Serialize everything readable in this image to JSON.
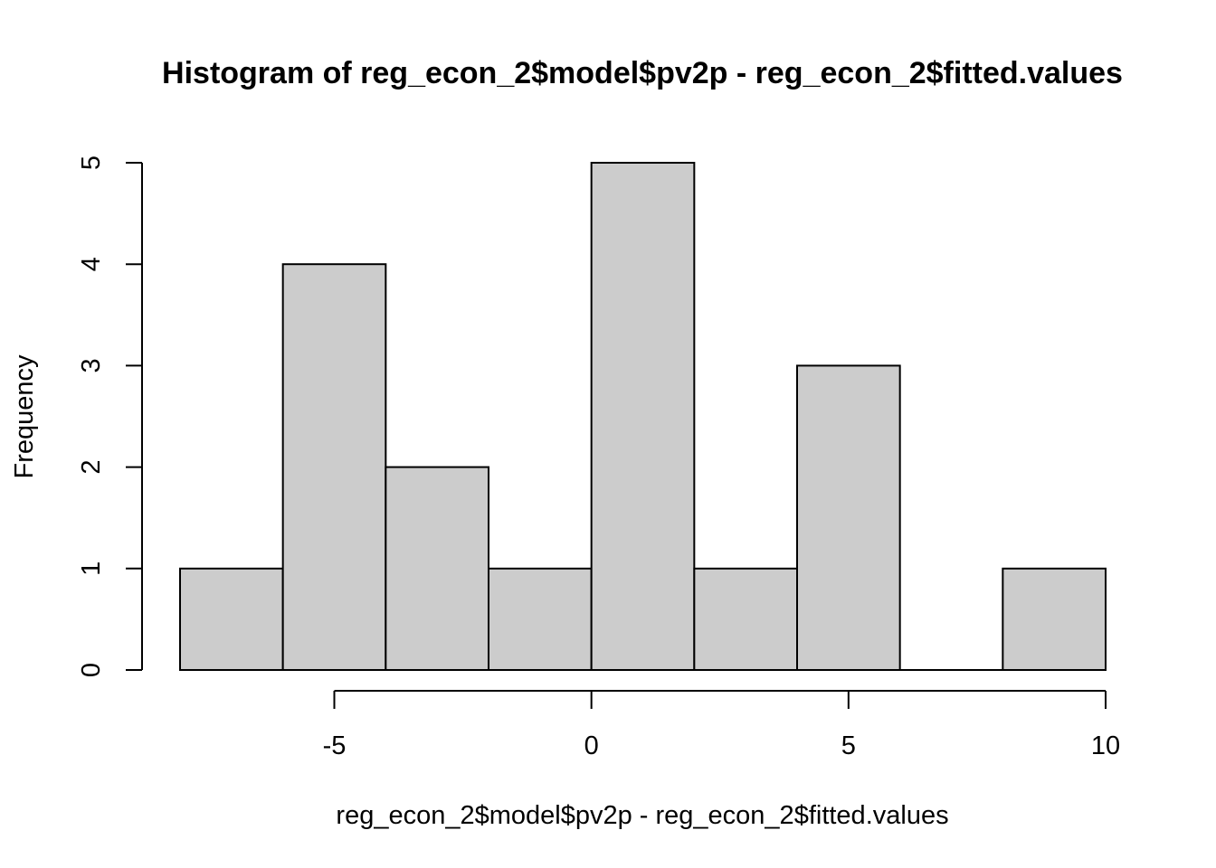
{
  "chart_data": {
    "type": "bar",
    "title": "Histogram of reg_econ_2$model$pv2p - reg_econ_2$fitted.values",
    "xlabel": "reg_econ_2$model$pv2p - reg_econ_2$fitted.values",
    "ylabel": "Frequency",
    "bins": [
      {
        "start": -8,
        "end": -6,
        "count": 1
      },
      {
        "start": -6,
        "end": -4,
        "count": 4
      },
      {
        "start": -4,
        "end": -2,
        "count": 2
      },
      {
        "start": -2,
        "end": 0,
        "count": 1
      },
      {
        "start": 0,
        "end": 2,
        "count": 5
      },
      {
        "start": 2,
        "end": 4,
        "count": 1
      },
      {
        "start": 4,
        "end": 6,
        "count": 3
      },
      {
        "start": 6,
        "end": 8,
        "count": 0
      },
      {
        "start": 8,
        "end": 10,
        "count": 1
      }
    ],
    "xlim": [
      -8,
      10
    ],
    "ylim": [
      0,
      5
    ],
    "xticks": [
      -5,
      0,
      5,
      10
    ],
    "yticks": [
      0,
      1,
      2,
      3,
      4,
      5
    ],
    "colors": {
      "bar_fill": "#cccccc",
      "bar_stroke": "#000000"
    }
  }
}
